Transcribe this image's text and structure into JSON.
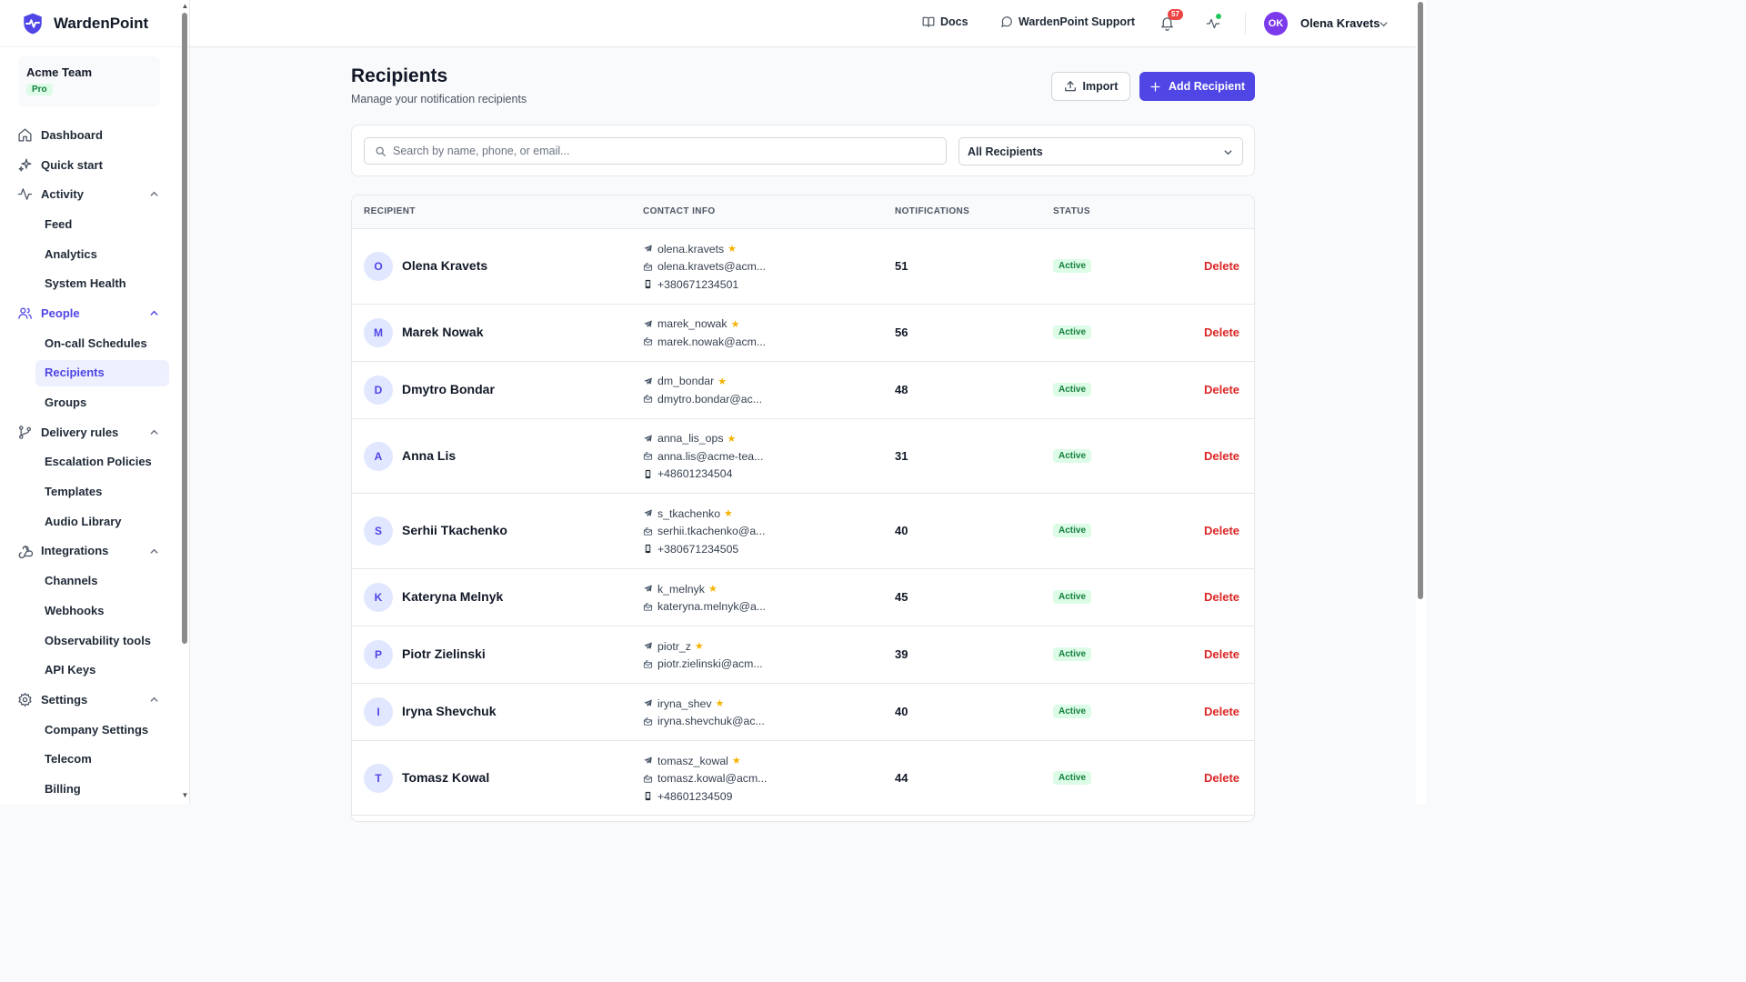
{
  "brand": {
    "name": "WardenPoint"
  },
  "team": {
    "name": "Acme Team",
    "plan": "Pro"
  },
  "nav": {
    "dashboard": "Dashboard",
    "quick_start": "Quick start",
    "activity": {
      "label": "Activity",
      "items": [
        "Feed",
        "Analytics",
        "System Health"
      ]
    },
    "people": {
      "label": "People",
      "items": [
        "On-call Schedules",
        "Recipients",
        "Groups"
      ]
    },
    "delivery": {
      "label": "Delivery rules",
      "items": [
        "Escalation Policies",
        "Templates",
        "Audio Library"
      ]
    },
    "integrations": {
      "label": "Integrations",
      "items": [
        "Channels",
        "Webhooks",
        "Observability tools",
        "API Keys"
      ]
    },
    "settings": {
      "label": "Settings",
      "items": [
        "Company Settings",
        "Telecom",
        "Billing"
      ]
    }
  },
  "topbar": {
    "docs": "Docs",
    "support": "WardenPoint Support",
    "notification_count": "57",
    "user_initials": "OK",
    "user_name": "Olena Kravets"
  },
  "page": {
    "title": "Recipients",
    "subtitle": "Manage your notification recipients",
    "import_label": "Import",
    "add_label": "Add Recipient",
    "search_placeholder": "Search by name, phone, or email...",
    "filter_value": "All Recipients"
  },
  "table": {
    "headers": [
      "RECIPIENT",
      "CONTACT INFO",
      "NOTIFICATIONS",
      "STATUS"
    ],
    "delete_label": "Delete",
    "rows": [
      {
        "initial": "O",
        "name": "Olena Kravets",
        "telegram": "olena.kravets",
        "email": "olena.kravets@acm...",
        "phone": "+380671234501",
        "notifications": "51",
        "status": "Active"
      },
      {
        "initial": "M",
        "name": "Marek Nowak",
        "telegram": "marek_nowak",
        "email": "marek.nowak@acm...",
        "phone": null,
        "notifications": "56",
        "status": "Active"
      },
      {
        "initial": "D",
        "name": "Dmytro Bondar",
        "telegram": "dm_bondar",
        "email": "dmytro.bondar@ac...",
        "phone": null,
        "notifications": "48",
        "status": "Active"
      },
      {
        "initial": "A",
        "name": "Anna Lis",
        "telegram": "anna_lis_ops",
        "email": "anna.lis@acme-tea...",
        "phone": "+48601234504",
        "notifications": "31",
        "status": "Active"
      },
      {
        "initial": "S",
        "name": "Serhii Tkachenko",
        "telegram": "s_tkachenko",
        "email": "serhii.tkachenko@a...",
        "phone": "+380671234505",
        "notifications": "40",
        "status": "Active"
      },
      {
        "initial": "K",
        "name": "Kateryna Melnyk",
        "telegram": "k_melnyk",
        "email": "kateryna.melnyk@a...",
        "phone": null,
        "notifications": "45",
        "status": "Active"
      },
      {
        "initial": "P",
        "name": "Piotr Zielinski",
        "telegram": "piotr_z",
        "email": "piotr.zielinski@acm...",
        "phone": null,
        "notifications": "39",
        "status": "Active"
      },
      {
        "initial": "I",
        "name": "Iryna Shevchuk",
        "telegram": "iryna_shev",
        "email": "iryna.shevchuk@ac...",
        "phone": null,
        "notifications": "40",
        "status": "Active"
      },
      {
        "initial": "T",
        "name": "Tomasz Kowal",
        "telegram": "tomasz_kowal",
        "email": "tomasz.kowal@acm...",
        "phone": "+48601234509",
        "notifications": "44",
        "status": "Active"
      }
    ]
  },
  "colors": {
    "accent": "#4f46e5",
    "danger": "#dc2626",
    "success": "#15803d",
    "success_bg": "#dcfce7"
  }
}
